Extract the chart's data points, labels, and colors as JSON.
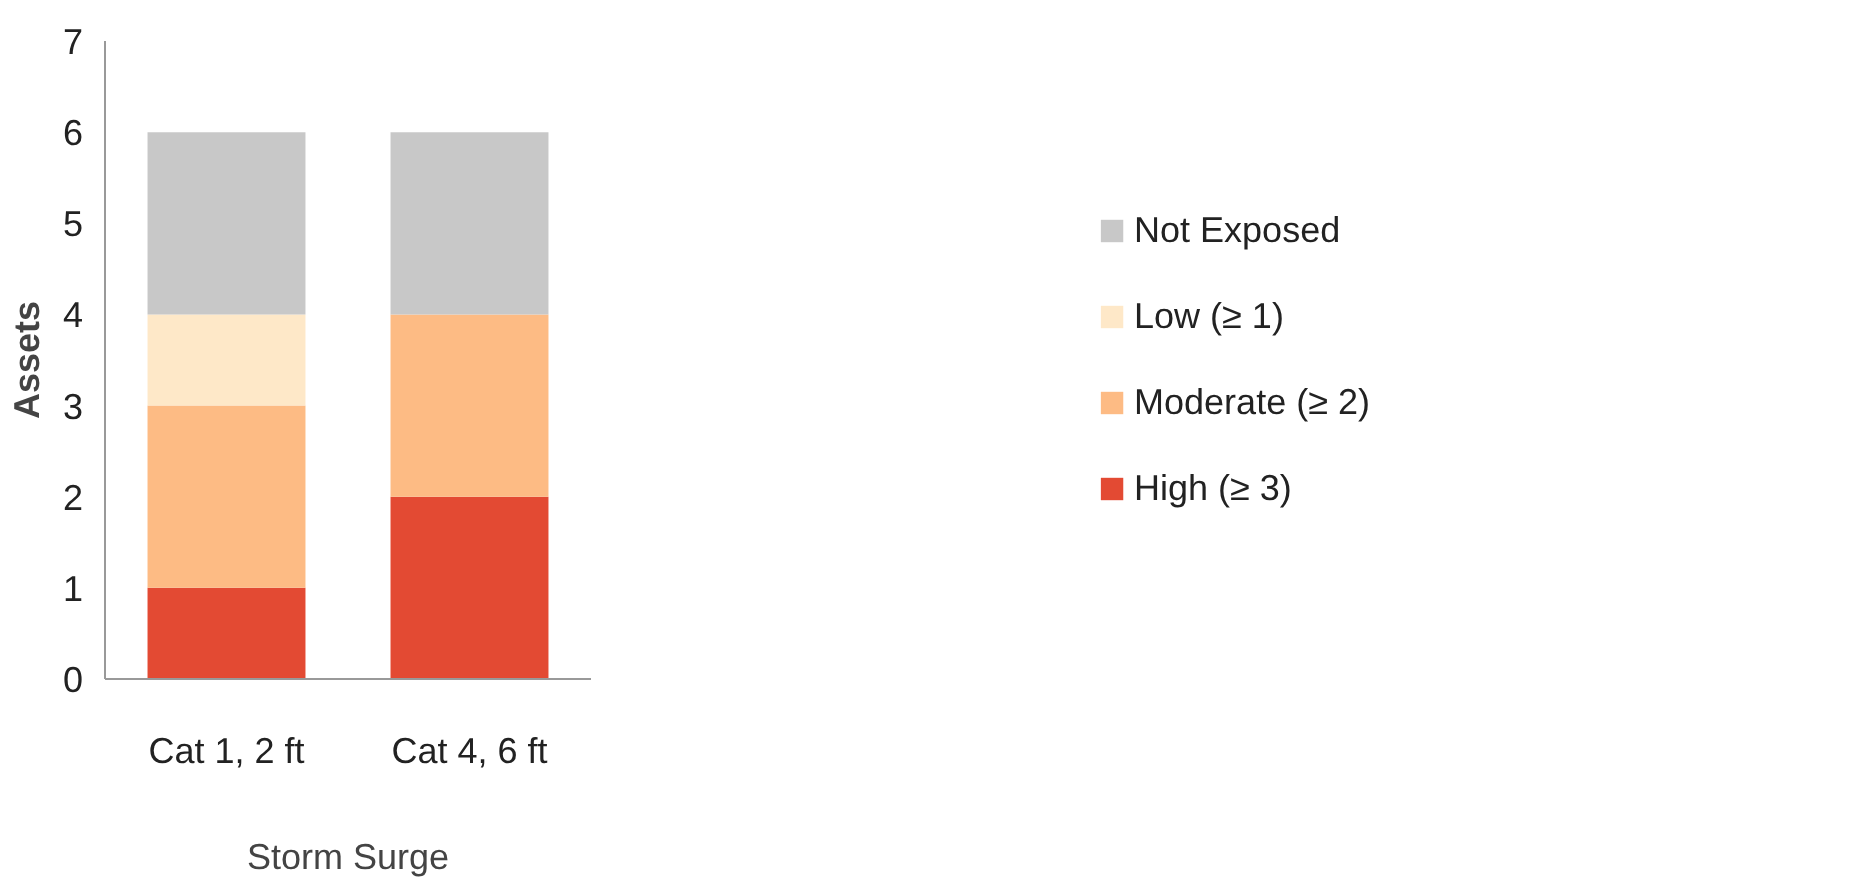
{
  "chart_data": {
    "type": "bar",
    "stacked": true,
    "xlabel": "Storm Surge",
    "ylabel": "Assets",
    "categories": [
      "Cat 1, 2 ft",
      "Cat 4, 6 ft"
    ],
    "series": [
      {
        "name": "High (≥ 3)",
        "color": "#e34a33",
        "values": [
          1,
          2
        ]
      },
      {
        "name": "Moderate (≥ 2)",
        "color": "#fdbb84",
        "values": [
          2,
          2
        ]
      },
      {
        "name": "Low (≥ 1)",
        "color": "#fee8c8",
        "values": [
          1,
          0
        ]
      },
      {
        "name": "Not Exposed",
        "color": "#c8c8c8",
        "values": [
          2,
          2
        ]
      }
    ],
    "ylim": [
      0,
      7
    ],
    "yticks": [
      0,
      1,
      2,
      3,
      4,
      5,
      6,
      7
    ],
    "grid": false,
    "legend": "right"
  }
}
